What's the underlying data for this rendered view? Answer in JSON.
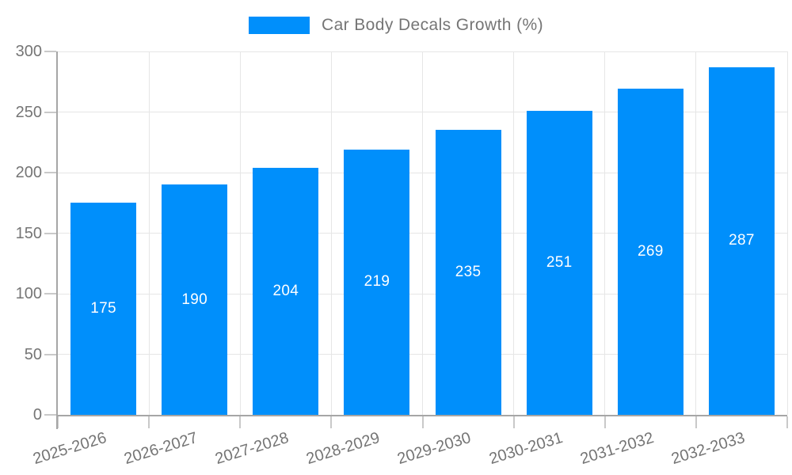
{
  "chart_data": {
    "type": "bar",
    "title": "Car Body Decals Growth (%)",
    "categories": [
      "2025-2026",
      "2026-2027",
      "2027-2028",
      "2028-2029",
      "2029-2030",
      "2030-2031",
      "2031-2032",
      "2032-2033"
    ],
    "values": [
      175,
      190,
      204,
      219,
      235,
      251,
      269,
      287
    ],
    "xlabel": "",
    "ylabel": "",
    "ylim": [
      0,
      300
    ],
    "ytick_step": 50,
    "yticks": [
      0,
      50,
      100,
      150,
      200,
      250,
      300
    ],
    "grid": true,
    "legend_position": "top-center",
    "value_labels": "inside-center",
    "colors": {
      "bar": "#008ffb",
      "value_label": "#ffffff",
      "text": "#757575",
      "grid": "#e6e6e6",
      "axis": "#a6a6a6",
      "tick": "#c9c9c9"
    }
  }
}
